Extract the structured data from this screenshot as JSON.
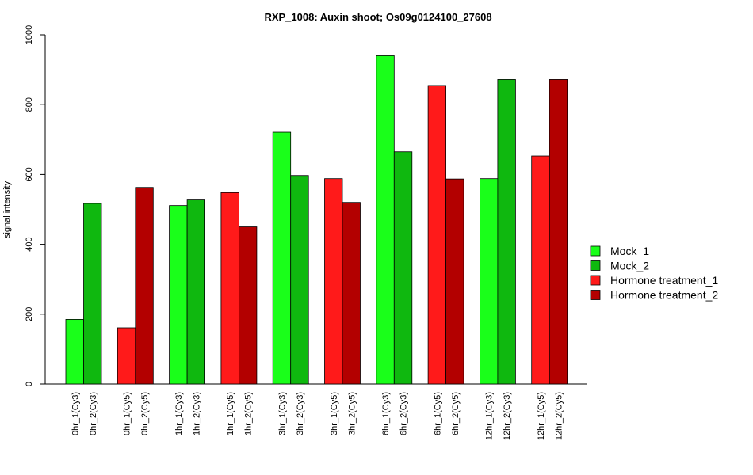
{
  "chart_data": {
    "type": "bar",
    "title": "RXP_1008: Auxin shoot; Os09g0124100_27608",
    "xlabel": "",
    "ylabel": "signal intensity",
    "ylim": [
      0,
      1000
    ],
    "yticks": [
      0,
      200,
      400,
      600,
      800,
      1000
    ],
    "legend_position": "right",
    "series": [
      {
        "name": "Mock_1",
        "color": "#1aff1a"
      },
      {
        "name": "Mock_2",
        "color": "#0fb80f"
      },
      {
        "name": "Hormone treatment_1",
        "color": "#ff1a1a"
      },
      {
        "name": "Hormone treatment_2",
        "color": "#b30000"
      }
    ],
    "groups": [
      {
        "bars": [
          {
            "label": "0hr_1(Cy3)",
            "value": 185,
            "series": 0
          },
          {
            "label": "0hr_2(Cy3)",
            "value": 517,
            "series": 1
          }
        ]
      },
      {
        "bars": [
          {
            "label": "0hr_1(Cy5)",
            "value": 161,
            "series": 2
          },
          {
            "label": "0hr_2(Cy5)",
            "value": 563,
            "series": 3
          }
        ]
      },
      {
        "bars": [
          {
            "label": "1hr_1(Cy3)",
            "value": 511,
            "series": 0
          },
          {
            "label": "1hr_2(Cy3)",
            "value": 527,
            "series": 1
          }
        ]
      },
      {
        "bars": [
          {
            "label": "1hr_1(Cy5)",
            "value": 548,
            "series": 2
          },
          {
            "label": "1hr_2(Cy5)",
            "value": 450,
            "series": 3
          }
        ]
      },
      {
        "bars": [
          {
            "label": "3hr_1(Cy3)",
            "value": 721,
            "series": 0
          },
          {
            "label": "3hr_2(Cy3)",
            "value": 597,
            "series": 1
          }
        ]
      },
      {
        "bars": [
          {
            "label": "3hr_1(Cy5)",
            "value": 588,
            "series": 2
          },
          {
            "label": "3hr_2(Cy5)",
            "value": 520,
            "series": 3
          }
        ]
      },
      {
        "bars": [
          {
            "label": "6hr_1(Cy3)",
            "value": 940,
            "series": 0
          },
          {
            "label": "6hr_2(Cy3)",
            "value": 665,
            "series": 1
          }
        ]
      },
      {
        "bars": [
          {
            "label": "6hr_1(Cy5)",
            "value": 855,
            "series": 2
          },
          {
            "label": "6hr_2(Cy5)",
            "value": 587,
            "series": 3
          }
        ]
      },
      {
        "bars": [
          {
            "label": "12hr_1(Cy3)",
            "value": 588,
            "series": 0
          },
          {
            "label": "12hr_2(Cy3)",
            "value": 872,
            "series": 1
          }
        ]
      },
      {
        "bars": [
          {
            "label": "12hr_1(Cy5)",
            "value": 653,
            "series": 2
          },
          {
            "label": "12hr_2(Cy5)",
            "value": 872,
            "series": 3
          }
        ]
      }
    ]
  }
}
